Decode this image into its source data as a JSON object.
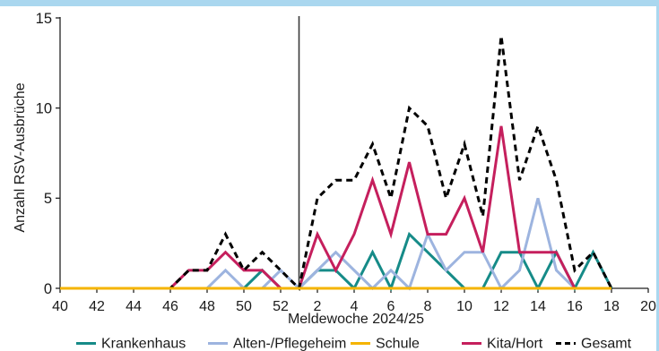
{
  "ui": {
    "frame_color": "#aad7ef"
  },
  "chart_data": {
    "type": "line",
    "xlabel": "Meldewoche 2024/25",
    "ylabel": "Anzahl RSV-Ausbrüche",
    "x": [
      40,
      41,
      42,
      43,
      44,
      45,
      46,
      47,
      48,
      49,
      50,
      51,
      52,
      1,
      2,
      3,
      4,
      5,
      6,
      7,
      8,
      9,
      10,
      11,
      12,
      13,
      14,
      15,
      16,
      17,
      18,
      19,
      20
    ],
    "x_ticks": [
      40,
      42,
      44,
      46,
      48,
      50,
      52,
      2,
      4,
      6,
      8,
      10,
      12,
      14,
      16,
      18,
      20
    ],
    "ylim": [
      0,
      15
    ],
    "y_ticks": [
      0,
      5,
      10,
      15
    ],
    "grid": false,
    "legend": "bottom",
    "reference_line_x": 1,
    "series": [
      {
        "name": "Krankenhaus",
        "color": "#168b88",
        "dashed": false,
        "values": [
          0,
          0,
          0,
          0,
          0,
          0,
          0,
          0,
          0,
          0,
          0,
          1,
          0,
          0,
          1,
          1,
          0,
          2,
          0,
          3,
          2,
          1,
          0,
          0,
          2,
          2,
          0,
          2,
          0,
          2,
          0,
          null,
          null
        ]
      },
      {
        "name": "Alten-/Pflegeheim",
        "color": "#9db4df",
        "dashed": false,
        "values": [
          0,
          0,
          0,
          0,
          0,
          0,
          0,
          0,
          0,
          1,
          0,
          0,
          1,
          0,
          1,
          2,
          1,
          0,
          1,
          0,
          3,
          1,
          2,
          2,
          0,
          1,
          5,
          1,
          0,
          0,
          0,
          null,
          null
        ]
      },
      {
        "name": "Schule",
        "color": "#f5b400",
        "dashed": false,
        "values": [
          0,
          0,
          0,
          0,
          0,
          0,
          0,
          0,
          0,
          0,
          0,
          0,
          0,
          0,
          0,
          0,
          0,
          0,
          0,
          0,
          0,
          0,
          0,
          0,
          0,
          0,
          0,
          0,
          0,
          0,
          0,
          null,
          null
        ]
      },
      {
        "name": "Kita/Hort",
        "color": "#c51f5d",
        "dashed": false,
        "values": [
          0,
          0,
          0,
          0,
          0,
          0,
          0,
          1,
          1,
          2,
          1,
          1,
          0,
          0,
          3,
          1,
          3,
          6,
          3,
          7,
          3,
          3,
          5,
          2,
          9,
          2,
          2,
          2,
          0,
          0,
          0,
          null,
          null
        ]
      },
      {
        "name": "Gesamt",
        "color": "#000000",
        "dashed": true,
        "values": [
          0,
          0,
          0,
          0,
          0,
          0,
          0,
          1,
          1,
          3,
          1,
          2,
          1,
          0,
          5,
          6,
          6,
          8,
          5,
          10,
          9,
          5,
          8,
          4,
          14,
          6,
          9,
          6,
          1,
          2,
          0,
          null,
          null
        ]
      }
    ]
  }
}
